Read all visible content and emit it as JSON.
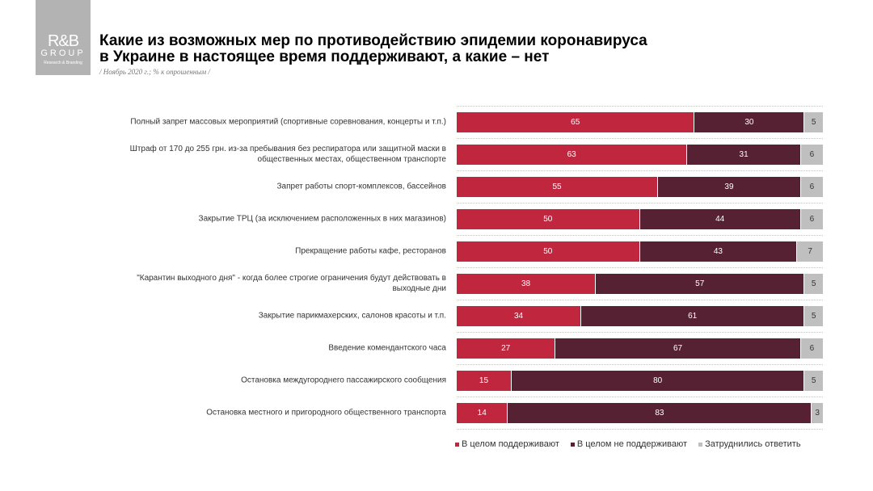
{
  "logo": {
    "line1": "R&B",
    "line2": "GROUP",
    "line3": "Research & Branding"
  },
  "title_line1": "Какие из возможных мер по противодействию эпидемии коронавируса",
  "title_line2": "в Украине в настоящее время поддерживают, а какие – нет",
  "subtitle": "/ Ноябрь 2020 г.; % к опрошенным /",
  "chart_data": {
    "type": "bar",
    "orientation": "horizontal-stacked",
    "categories": [
      "Полный запрет массовых мероприятий (спортивные соревнования, концерты и т.п.)",
      "Штраф от 170 до 255 грн. из-за пребывания без респиратора или защитной маски в общественных местах, общественном транспорте",
      "Запрет работы спорт-комплексов, бассейнов",
      "Закрытие ТРЦ (за исключением расположенных в них магазинов)",
      "Прекращение работы кафе, ресторанов",
      "\"Карантин выходного дня\" - когда более строгие ограничения будут действовать в выходные дни",
      "Закрытие парикмахерских, салонов красоты и т.п.",
      "Введение комендантского часа",
      "Остановка междугороднего пассажирского сообщения",
      "Остановка местного и пригородного общественного транспорта"
    ],
    "series": [
      {
        "name": "В целом поддерживают",
        "color": "#c0273f",
        "values": [
          65,
          63,
          55,
          50,
          50,
          38,
          34,
          27,
          15,
          14
        ]
      },
      {
        "name": "В целом не поддерживают",
        "color": "#562233",
        "values": [
          30,
          31,
          39,
          44,
          43,
          57,
          61,
          67,
          80,
          83
        ]
      },
      {
        "name": "Затруднились ответить",
        "color": "#bfbfbf",
        "values": [
          5,
          6,
          6,
          6,
          7,
          5,
          5,
          6,
          5,
          3
        ]
      }
    ],
    "xlim": [
      0,
      100
    ],
    "legend": "bottom",
    "grid": true
  }
}
